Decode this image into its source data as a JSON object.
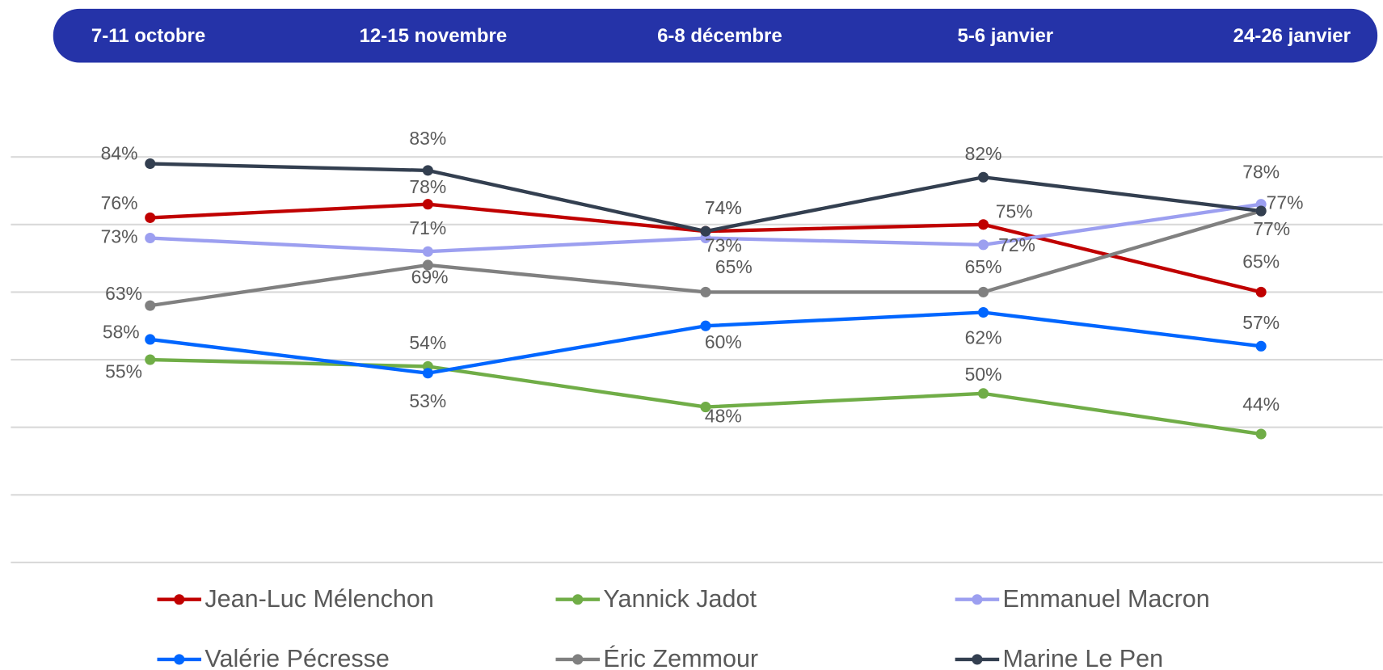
{
  "chart_data": {
    "type": "line",
    "categories": [
      "7-11 octobre",
      "12-15 novembre",
      "6-8 décembre",
      "5-6 janvier",
      "24-26 janvier"
    ],
    "series": [
      {
        "name": "Jean-Luc Mélenchon",
        "color": "#c00000",
        "values": [
          76,
          78,
          74,
          75,
          65
        ],
        "value_labels": [
          "76%",
          "78%",
          "74%",
          "75%",
          "65%"
        ]
      },
      {
        "name": "Yannick Jadot",
        "color": "#70ad47",
        "values": [
          55,
          54,
          48,
          50,
          44
        ],
        "value_labels": [
          "55%",
          "54%",
          "48%",
          "50%",
          "44%"
        ]
      },
      {
        "name": "Emmanuel Macron",
        "color": "#9c9ff0",
        "values": [
          73,
          71,
          73,
          72,
          78
        ],
        "value_labels": [
          "73%",
          "71%",
          "73%",
          "72%",
          "78%"
        ]
      },
      {
        "name": "Valérie Pécresse",
        "color": "#0066ff",
        "values": [
          58,
          53,
          60,
          62,
          57
        ],
        "value_labels": [
          "58%",
          "53%",
          "60%",
          "62%",
          "57%"
        ]
      },
      {
        "name": "Éric Zemmour",
        "color": "#808080",
        "values": [
          63,
          69,
          65,
          65,
          77
        ],
        "value_labels": [
          "63%",
          "69%",
          "65%",
          "65%",
          "77%"
        ]
      },
      {
        "name": "Marine Le Pen",
        "color": "#333f50",
        "values": [
          84,
          83,
          74,
          82,
          77
        ],
        "value_labels": [
          "84%",
          "83%",
          "74%",
          "82%",
          "77%"
        ]
      }
    ],
    "ylim": [
      25,
      85
    ],
    "yticks": [
      25,
      35,
      45,
      55,
      65,
      75,
      85
    ],
    "grid": true,
    "header_color": "#2533a8"
  }
}
